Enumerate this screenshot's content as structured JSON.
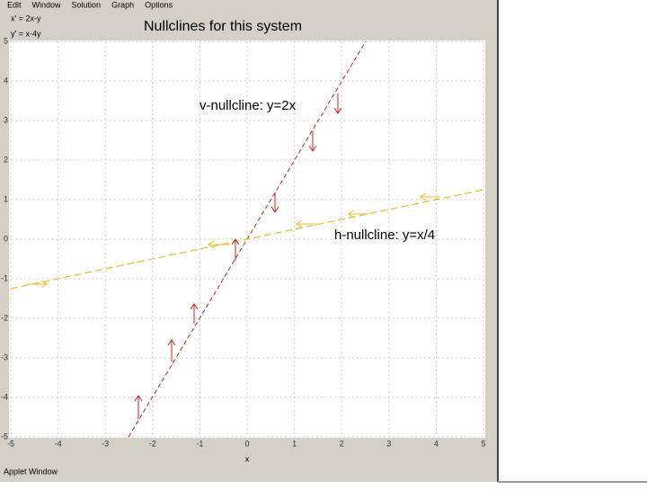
{
  "window": {
    "menu": [
      "Edit",
      "Window",
      "Solution",
      "Graph",
      "Options"
    ],
    "equations": [
      "x' = 2x-y",
      "y' = x-4y"
    ],
    "status": "Applet Window"
  },
  "plot": {
    "title": "Nullclines for this system",
    "x_label": "x",
    "xlim": [
      -5,
      5
    ],
    "ylim": [
      -5,
      5
    ],
    "xticks": [
      -5,
      -4,
      -3,
      -2,
      -1,
      0,
      1,
      2,
      3,
      4,
      5
    ],
    "yticks": [
      -5,
      -4,
      -3,
      -2,
      -1,
      0,
      1,
      2,
      3,
      4,
      5
    ],
    "annotations": [
      "v-nullcline:  y=2x",
      "h-nullcline:  y=x/4"
    ]
  }
}
